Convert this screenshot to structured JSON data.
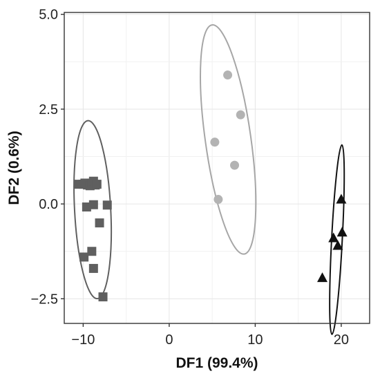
{
  "chart_data": {
    "type": "scatter",
    "title": "",
    "xlabel": "DF1 (99.4%)",
    "ylabel": "DF2 (0.6%)",
    "xlim": [
      -12.2,
      23.3
    ],
    "ylim": [
      -3.15,
      5.05
    ],
    "x_ticks": [
      -10,
      0,
      10,
      20
    ],
    "x_tick_labels": [
      "−10",
      "0",
      "10",
      "20"
    ],
    "y_ticks": [
      -2.5,
      0.0,
      2.5,
      5.0
    ],
    "y_tick_labels": [
      "−2.5",
      "0.0",
      "2.5",
      "5.0"
    ],
    "grid": true,
    "legend": "none",
    "background": "#ffffff",
    "grid_color": "#e6e6e6",
    "series": [
      {
        "marker": "square",
        "color": "#5f5f5f",
        "ellipse_color": "#5f5f5f",
        "points": [
          [
            -10.5,
            0.52
          ],
          [
            -10.0,
            0.52
          ],
          [
            -9.8,
            0.55
          ],
          [
            -9.5,
            0.5
          ],
          [
            -9.2,
            0.48
          ],
          [
            -9.0,
            0.55
          ],
          [
            -8.8,
            0.6
          ],
          [
            -8.6,
            0.5
          ],
          [
            -8.4,
            0.52
          ],
          [
            -9.6,
            -0.08
          ],
          [
            -8.8,
            -0.02
          ],
          [
            -7.2,
            -0.03
          ],
          [
            -8.1,
            -0.5
          ],
          [
            -9.0,
            -1.25
          ],
          [
            -9.9,
            -1.4
          ],
          [
            -8.8,
            -1.7
          ],
          [
            -7.7,
            -2.45
          ]
        ],
        "ellipse": {
          "cx": -8.9,
          "cy": -0.15,
          "rx": 2.1,
          "ry": 2.35,
          "rotation": -3
        }
      },
      {
        "marker": "circle",
        "color": "#b3b3b3",
        "ellipse_color": "#a6a6a6",
        "points": [
          [
            6.8,
            3.4
          ],
          [
            8.3,
            2.35
          ],
          [
            5.3,
            1.63
          ],
          [
            7.6,
            1.02
          ],
          [
            5.7,
            0.12
          ]
        ],
        "ellipse": {
          "cx": 6.85,
          "cy": 1.7,
          "rx": 2.65,
          "ry": 3.05,
          "rotation": -8
        }
      },
      {
        "marker": "triangle",
        "color": "#111111",
        "ellipse_color": "#111111",
        "points": [
          [
            20.0,
            0.12
          ],
          [
            20.1,
            -0.75
          ],
          [
            19.1,
            -0.9
          ],
          [
            19.6,
            -1.1
          ],
          [
            17.8,
            -1.95
          ]
        ],
        "ellipse": {
          "cx": 19.5,
          "cy": -0.94,
          "rx": 0.62,
          "ry": 2.5,
          "rotation": 3
        }
      }
    ]
  }
}
